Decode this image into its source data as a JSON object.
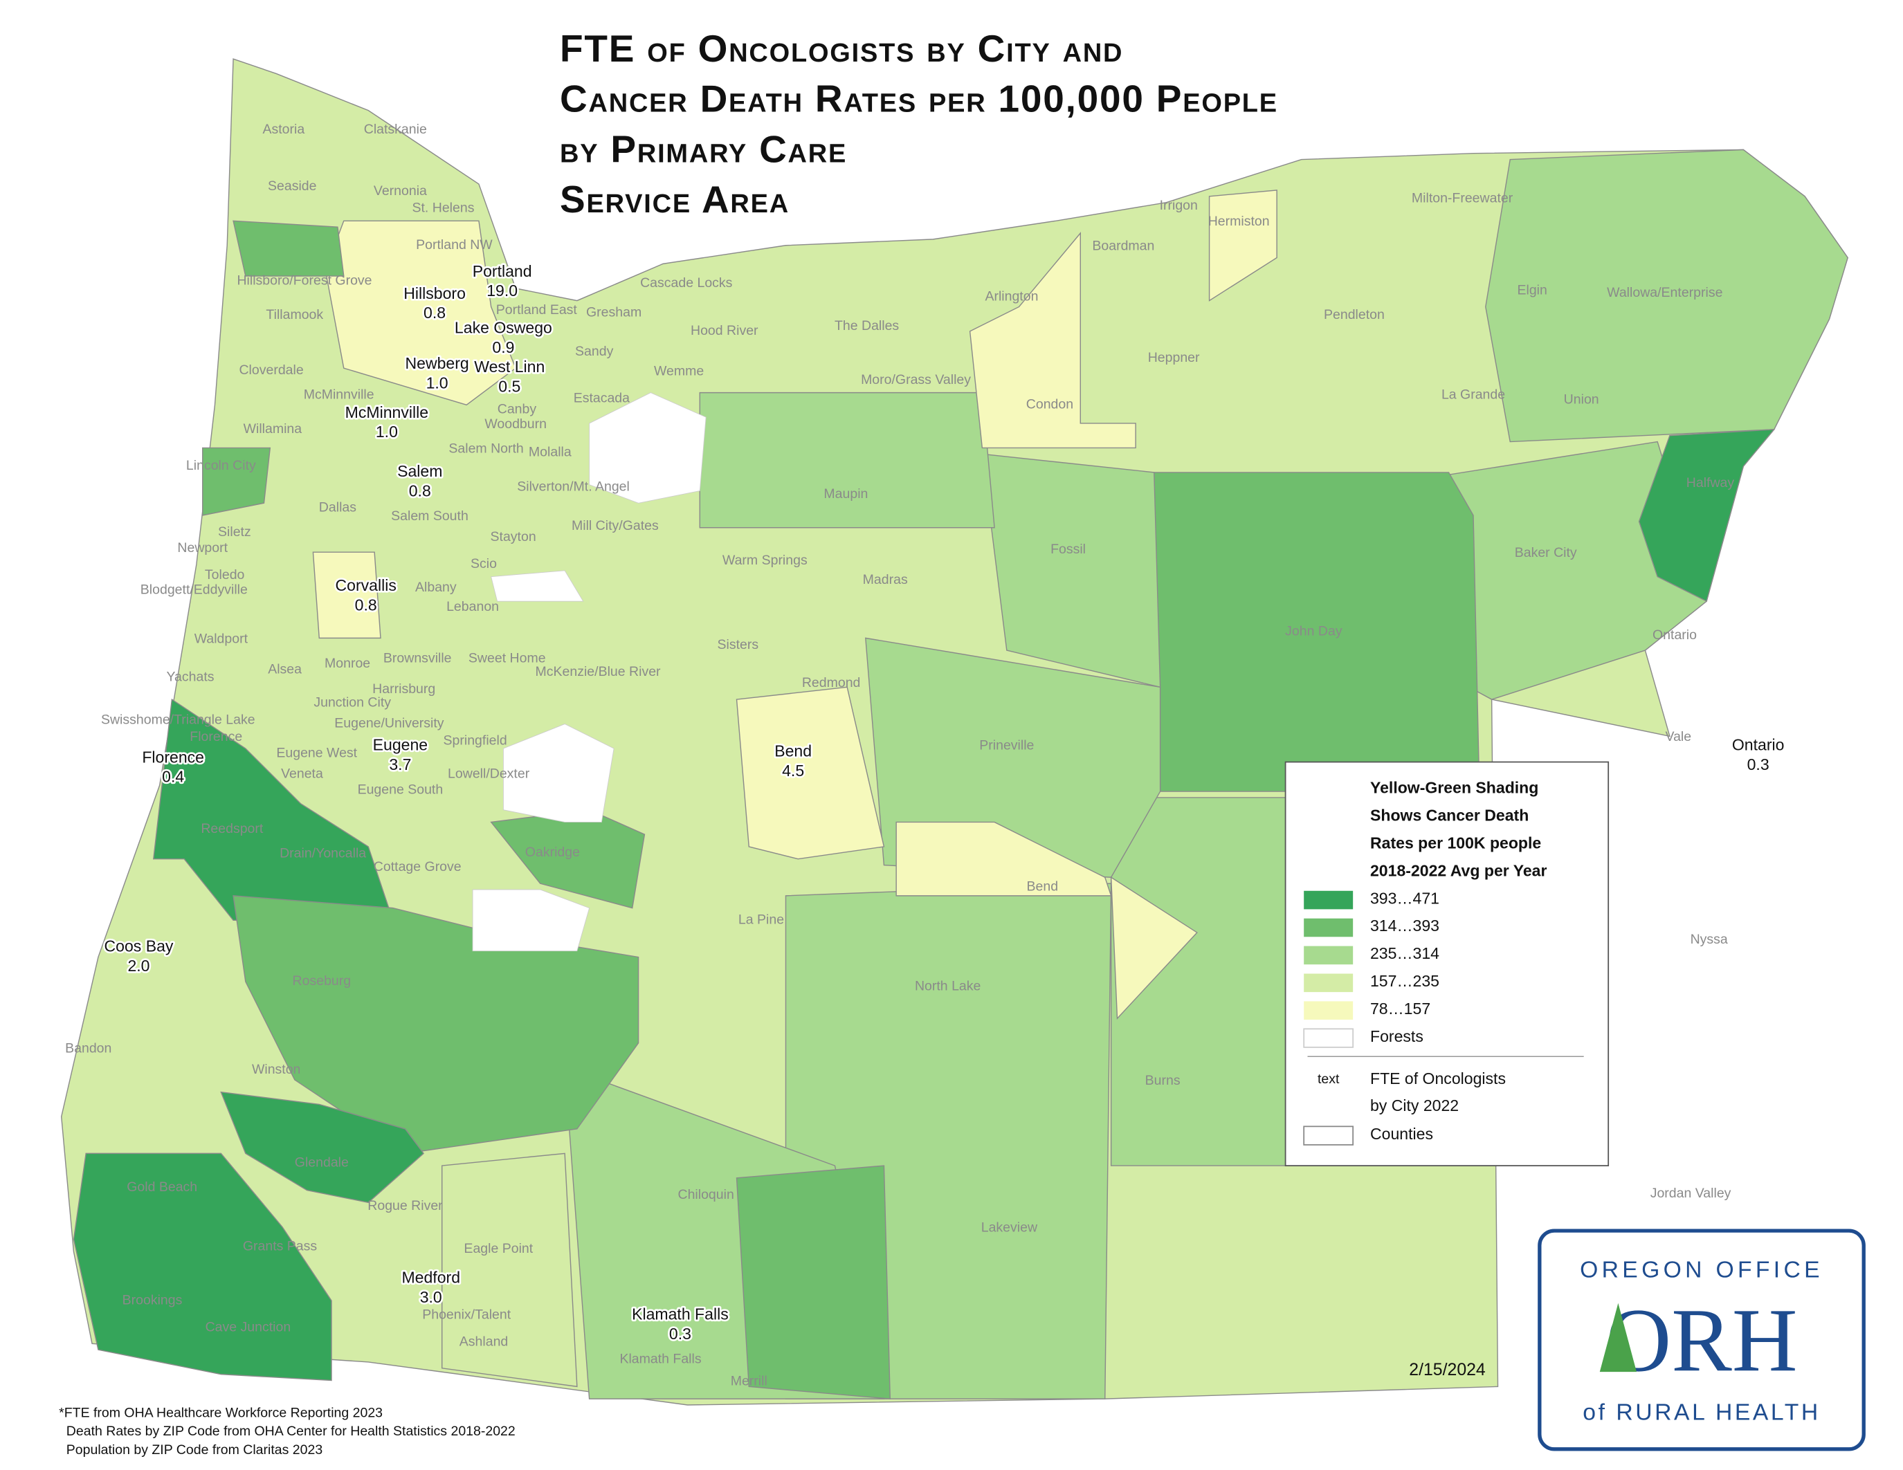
{
  "title": [
    "FTE of Oncologists by City and",
    "Cancer Death Rates per 100,000 People",
    "by Primary Care",
    "Service Area"
  ],
  "fte_cities": {
    "names": [
      "Portland",
      "Hillsboro",
      "Lake Oswego",
      "Newberg",
      "West Linn",
      "McMinnville",
      "Salem",
      "Corvallis",
      "Eugene",
      "Florence",
      "Bend",
      "Ontario",
      "Coos Bay",
      "Medford",
      "Klamath Falls"
    ],
    "values": [
      19.0,
      0.8,
      0.9,
      1.0,
      0.5,
      1.0,
      0.8,
      0.8,
      3.7,
      0.4,
      4.5,
      0.3,
      2.0,
      3.0,
      0.3
    ],
    "value_labels": [
      "19.0",
      "0.8",
      "0.9",
      "1.0",
      "0.5",
      "1.0",
      "0.8",
      "0.8",
      "3.7",
      "0.4",
      "4.5",
      "0.3",
      "2.0",
      "3.0",
      "0.3"
    ]
  },
  "service_areas": [
    "Astoria",
    "Clatskanie",
    "Seaside",
    "Vernonia",
    "St. Helens",
    "Portland NW",
    "Hillsboro/Forest Grove",
    "Tillamook",
    "Portland East",
    "Gresham",
    "Cascade Locks",
    "Hood River",
    "Sandy",
    "Wemme",
    "Estacada",
    "Canby",
    "Woodburn",
    "Cloverdale",
    "McMinnville",
    "Willamina",
    "Molalla",
    "Salem North",
    "Silverton/Mt. Angel",
    "Lincoln City",
    "Dallas",
    "Salem South",
    "Mill City/Gates",
    "Siletz",
    "Newport",
    "Toledo",
    "Blodgett/Eddyville",
    "Scio",
    "Stayton",
    "Albany",
    "Lebanon",
    "Waldport",
    "Yachats",
    "Alsea",
    "Monroe",
    "Brownsville",
    "Sweet Home",
    "McKenzie/Blue River",
    "Harrisburg",
    "Junction City",
    "Swisshome/Triangle Lake",
    "Florence",
    "Eugene/University",
    "Springfield",
    "Eugene West",
    "Veneta",
    "Lowell/Dexter",
    "Eugene South",
    "Reedsport",
    "Drain/Yoncalla",
    "Cottage Grove",
    "Oakridge",
    "Roseburg",
    "Winston",
    "Bandon",
    "Glendale",
    "Gold Beach",
    "Grants Pass",
    "Eagle Point",
    "Rogue River",
    "Brookings",
    "Cave Junction",
    "Phoenix/Talent",
    "Ashland",
    "Chiloquin",
    "Klamath Falls",
    "Merrill",
    "Lakeview",
    "La Pine",
    "North Lake",
    "Burns",
    "Bend",
    "Redmond",
    "Sisters",
    "Warm Springs",
    "Madras",
    "Prineville",
    "Maupin",
    "The Dalles",
    "Moro/Grass Valley",
    "Arlington",
    "Condon",
    "Fossil",
    "Boardman",
    "Irrigon",
    "Hermiston",
    "Heppner",
    "Pendleton",
    "Milton-Freewater",
    "Elgin",
    "Wallowa/Enterprise",
    "La Grande",
    "Union",
    "Halfway",
    "Baker City",
    "Ontario",
    "Vale",
    "Nyssa",
    "Jordan Valley",
    "John Day"
  ],
  "legend": {
    "title": [
      "Yellow-Green Shading",
      "Shows Cancer Death",
      "Rates per 100K people",
      "2018-2022 Avg per Year"
    ],
    "classes": [
      "393…471",
      "314…393",
      "235…314",
      "157…235",
      "78…157",
      "Forests"
    ],
    "colors": [
      "#35a55a",
      "#6fbe6d",
      "#a7da8f",
      "#d4eca6",
      "#f6f9bc",
      "#ffffff"
    ],
    "text_sample": "text",
    "fte_entry": [
      "FTE of Oncologists",
      "by City 2022"
    ],
    "counties": "Counties"
  },
  "date": "2/15/2024",
  "footnotes": [
    "*FTE from OHA Healthcare Workforce Reporting 2023",
    "Death Rates by ZIP Code from OHA Center for Health Statistics 2018-2022",
    "Population by ZIP Code from Claritas 2023"
  ],
  "logo": {
    "top": "OREGON OFFICE",
    "mark": "ORH",
    "bottom": "of RURAL HEALTH"
  }
}
